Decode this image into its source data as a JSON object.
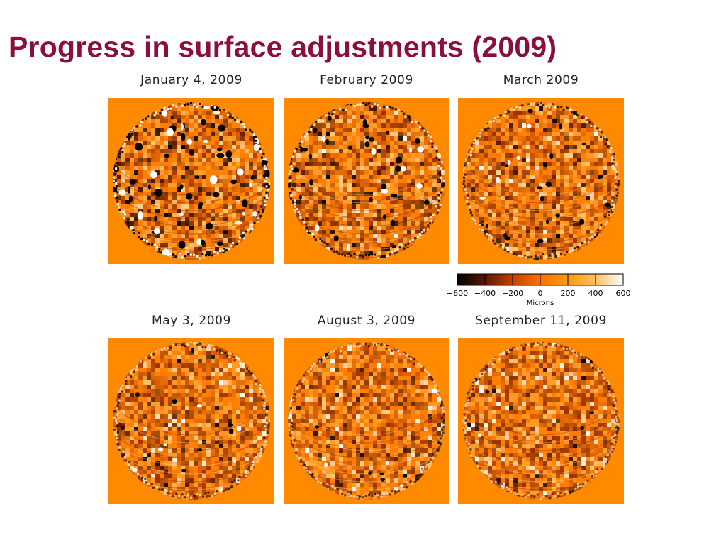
{
  "slide": {
    "title": "Progress in surface adjustments (2009)"
  },
  "panels": [
    {
      "caption": "January 4, 2009",
      "roughness": 1.0
    },
    {
      "caption": "February 2009",
      "roughness": 0.78
    },
    {
      "caption": "March 2009",
      "roughness": 0.62
    },
    {
      "caption": "May 3, 2009",
      "roughness": 0.5
    },
    {
      "caption": "August 3, 2009",
      "roughness": 0.38
    },
    {
      "caption": "September 11, 2009",
      "roughness": 0.3
    }
  ],
  "colorbar": {
    "ticks": [
      "−600",
      "−400",
      "−200",
      "0",
      "200",
      "400",
      "600"
    ],
    "unit": "Microns",
    "colors": {
      "low": "#000000",
      "mid_low": "#8a2a00",
      "mid": "#ff6a00",
      "mid_high": "#ffa020",
      "high": "#ffffff"
    }
  },
  "theme": {
    "title_color": "#8b0f3e",
    "background_orange": "#ff8a00"
  }
}
